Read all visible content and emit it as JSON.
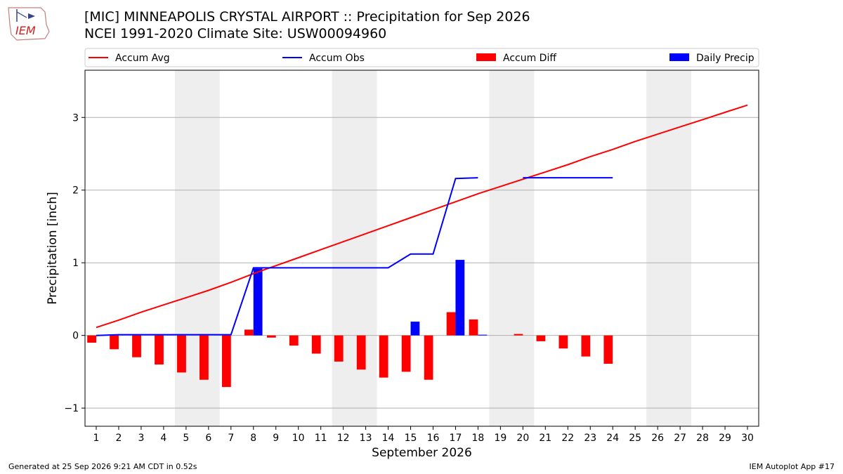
{
  "header": {
    "title_line1": "[MIC] MINNEAPOLIS CRYSTAL AIRPORT :: Precipitation for Sep 2026",
    "title_line2": "NCEI 1991-2020 Climate Site: USW00094960",
    "logo_text": "IEM"
  },
  "footer": {
    "left": "Generated at 25 Sep 2026 9:21 AM CDT in 0.52s",
    "right": "IEM Autoplot App #17"
  },
  "colors": {
    "avg": "#ff0000",
    "obs": "#0000ff",
    "diff": "#ff0000",
    "daily": "#0000ff",
    "weekend_band": "#eeeeee",
    "grid": "#b0b0b0"
  },
  "chart_data": {
    "type": "bar",
    "xlabel": "September 2026",
    "ylabel": "Precipitation [inch]",
    "xlim": [
      0.5,
      30.5
    ],
    "ylim": [
      -1.25,
      3.65
    ],
    "yticks": [
      -1,
      0,
      1,
      2,
      3
    ],
    "ytick_labels": [
      "−1",
      "0",
      "1",
      "2",
      "3"
    ],
    "grid": "horizontal",
    "legend_placement": "top",
    "days": [
      1,
      2,
      3,
      4,
      5,
      6,
      7,
      8,
      9,
      10,
      11,
      12,
      13,
      14,
      15,
      16,
      17,
      18,
      19,
      20,
      21,
      22,
      23,
      24,
      25,
      26,
      27,
      28,
      29,
      30
    ],
    "weekend_bands": [
      [
        4.5,
        6.5
      ],
      [
        11.5,
        13.5
      ],
      [
        18.5,
        20.5
      ],
      [
        25.5,
        27.5
      ]
    ],
    "series": [
      {
        "name": "Accum Avg",
        "kind": "line",
        "values": [
          0.11,
          0.21,
          0.32,
          0.42,
          0.52,
          0.62,
          0.73,
          0.85,
          0.96,
          1.07,
          1.18,
          1.29,
          1.4,
          1.51,
          1.62,
          1.73,
          1.84,
          1.95,
          2.05,
          2.15,
          2.25,
          2.35,
          2.46,
          2.56,
          2.67,
          2.77,
          2.87,
          2.97,
          3.07,
          3.17
        ]
      },
      {
        "name": "Accum Obs",
        "kind": "line",
        "values": [
          0.0,
          0.01,
          0.01,
          0.01,
          0.01,
          0.01,
          0.01,
          0.93,
          0.93,
          0.93,
          0.93,
          0.93,
          0.93,
          0.93,
          1.12,
          1.12,
          2.16,
          2.17,
          null,
          2.17,
          2.17,
          2.17,
          2.17,
          2.17,
          null,
          null,
          null,
          null,
          null,
          null
        ]
      },
      {
        "name": "Accum Diff",
        "kind": "bar",
        "values": [
          -0.1,
          -0.19,
          -0.3,
          -0.4,
          -0.51,
          -0.61,
          -0.71,
          0.08,
          -0.03,
          -0.14,
          -0.25,
          -0.36,
          -0.47,
          -0.58,
          -0.5,
          -0.61,
          0.32,
          0.22,
          null,
          0.02,
          -0.08,
          -0.18,
          -0.29,
          -0.39,
          null,
          null,
          null,
          null,
          null,
          null
        ]
      },
      {
        "name": "Daily Precip",
        "kind": "bar",
        "values": [
          0,
          0,
          0,
          0,
          0,
          0,
          0,
          0.92,
          0,
          0,
          0,
          0,
          0,
          0,
          0.19,
          0,
          1.04,
          0.01,
          null,
          0,
          0,
          0,
          0,
          0,
          null,
          null,
          null,
          null,
          null,
          null
        ]
      }
    ]
  }
}
